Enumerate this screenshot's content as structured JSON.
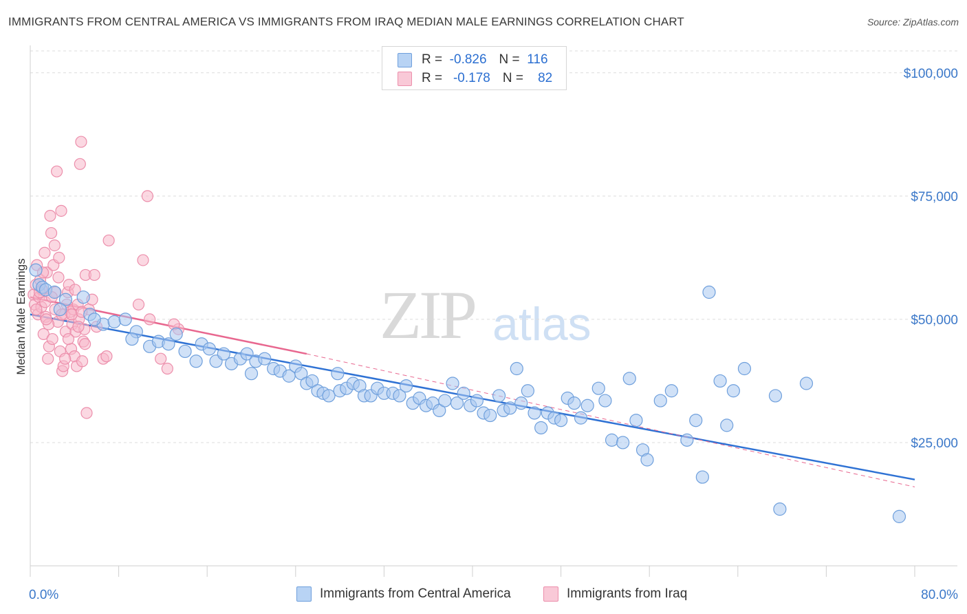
{
  "title": "IMMIGRANTS FROM CENTRAL AMERICA VS IMMIGRANTS FROM IRAQ MEDIAN MALE EARNINGS CORRELATION CHART",
  "source": "Source: ZipAtlas.com",
  "watermark": {
    "zip": "ZIP",
    "atlas": "atlas"
  },
  "legend": {
    "rows": [
      {
        "r_label": "R =",
        "r_value": "-0.826",
        "n_label": "N =",
        "n_value": "116",
        "color": "#a9c8f0"
      },
      {
        "r_label": "R =",
        "r_value": "-0.178",
        "n_label": "N =",
        "n_value": "82",
        "color": "#f7b8cb"
      }
    ]
  },
  "bottom_legend": [
    "Immigrants from Central America",
    "Immigrants from Iraq"
  ],
  "colors": {
    "blue_fill": "#a9c8f0",
    "blue_stroke": "#6e9fdc",
    "blue_line": "#2f72d4",
    "pink_fill": "#f7b8cb",
    "pink_stroke": "#ec8eab",
    "pink_line": "#e8678f",
    "axis_text": "#3b78c9",
    "grid": "#dcdcdc"
  },
  "chart_data": {
    "type": "scatter",
    "title": "IMMIGRANTS FROM CENTRAL AMERICA VS IMMIGRANTS FROM IRAQ MEDIAN MALE EARNINGS CORRELATION CHART",
    "xlabel": "",
    "ylabel": "Median Male Earnings",
    "xlim": [
      0,
      80
    ],
    "ylim": [
      0,
      105000
    ],
    "x_tick_labels": [
      "0.0%",
      "80.0%"
    ],
    "y_ticks": [
      {
        "value": 25000,
        "label": "$25,000"
      },
      {
        "value": 50000,
        "label": "$50,000"
      },
      {
        "value": 75000,
        "label": "$75,000"
      },
      {
        "value": 100000,
        "label": "$100,000"
      }
    ],
    "series": [
      {
        "name": "Immigrants from Central America",
        "R": -0.826,
        "N": 116,
        "trend": {
          "x": [
            0,
            80
          ],
          "y": [
            51000,
            17500
          ],
          "style": "solid"
        },
        "points": [
          [
            0.5,
            60000
          ],
          [
            0.8,
            57000
          ],
          [
            1.1,
            56500
          ],
          [
            1.4,
            56000
          ],
          [
            2.2,
            55500
          ],
          [
            3.2,
            54000
          ],
          [
            4.8,
            54500
          ],
          [
            2.7,
            52000
          ],
          [
            5.4,
            51000
          ],
          [
            6.6,
            49000
          ],
          [
            5.8,
            50000
          ],
          [
            7.6,
            49500
          ],
          [
            8.6,
            50000
          ],
          [
            9.6,
            47500
          ],
          [
            9.2,
            46000
          ],
          [
            10.8,
            44500
          ],
          [
            11.6,
            45500
          ],
          [
            12.5,
            45000
          ],
          [
            13.2,
            47000
          ],
          [
            14.0,
            43500
          ],
          [
            15.0,
            41500
          ],
          [
            15.5,
            45000
          ],
          [
            16.2,
            44000
          ],
          [
            16.8,
            41500
          ],
          [
            17.5,
            43000
          ],
          [
            18.2,
            41000
          ],
          [
            19.0,
            42000
          ],
          [
            19.6,
            43000
          ],
          [
            20.4,
            41500
          ],
          [
            20.0,
            39000
          ],
          [
            21.2,
            42000
          ],
          [
            22.0,
            40000
          ],
          [
            22.6,
            39500
          ],
          [
            23.4,
            38500
          ],
          [
            24.0,
            40500
          ],
          [
            24.5,
            39000
          ],
          [
            25.0,
            37000
          ],
          [
            25.5,
            37500
          ],
          [
            26.0,
            35500
          ],
          [
            26.5,
            35000
          ],
          [
            27.0,
            34500
          ],
          [
            27.8,
            39000
          ],
          [
            28.0,
            35500
          ],
          [
            28.6,
            36000
          ],
          [
            29.2,
            37000
          ],
          [
            29.8,
            36500
          ],
          [
            30.2,
            34500
          ],
          [
            30.8,
            34500
          ],
          [
            31.4,
            36000
          ],
          [
            32.0,
            35000
          ],
          [
            32.8,
            35000
          ],
          [
            33.4,
            34500
          ],
          [
            34.0,
            36500
          ],
          [
            34.6,
            33000
          ],
          [
            35.2,
            34000
          ],
          [
            35.8,
            32500
          ],
          [
            36.4,
            33000
          ],
          [
            37.0,
            31500
          ],
          [
            37.5,
            33500
          ],
          [
            38.2,
            37000
          ],
          [
            38.6,
            33000
          ],
          [
            39.2,
            35000
          ],
          [
            39.8,
            32500
          ],
          [
            40.4,
            33500
          ],
          [
            41.0,
            31000
          ],
          [
            41.6,
            30500
          ],
          [
            42.4,
            34500
          ],
          [
            42.8,
            31500
          ],
          [
            43.4,
            32000
          ],
          [
            44.0,
            40000
          ],
          [
            44.4,
            33000
          ],
          [
            45.0,
            35500
          ],
          [
            45.6,
            31000
          ],
          [
            46.2,
            28000
          ],
          [
            46.8,
            31000
          ],
          [
            47.4,
            30000
          ],
          [
            48.0,
            29500
          ],
          [
            48.6,
            34000
          ],
          [
            49.2,
            33000
          ],
          [
            49.8,
            30000
          ],
          [
            50.4,
            32500
          ],
          [
            51.4,
            36000
          ],
          [
            52.0,
            33500
          ],
          [
            52.6,
            25500
          ],
          [
            53.6,
            25000
          ],
          [
            54.2,
            38000
          ],
          [
            54.8,
            29500
          ],
          [
            55.4,
            23500
          ],
          [
            55.8,
            21500
          ],
          [
            57.0,
            33500
          ],
          [
            58.0,
            35500
          ],
          [
            59.4,
            25500
          ],
          [
            60.2,
            29500
          ],
          [
            60.8,
            18000
          ],
          [
            61.4,
            55500
          ],
          [
            62.4,
            37500
          ],
          [
            63.0,
            28500
          ],
          [
            63.6,
            35500
          ],
          [
            64.6,
            40000
          ],
          [
            67.4,
            34500
          ],
          [
            67.8,
            11500
          ],
          [
            70.2,
            37000
          ],
          [
            78.6,
            10000
          ]
        ]
      },
      {
        "name": "Immigrants from Iraq",
        "R": -0.178,
        "N": 82,
        "trend": {
          "x": [
            0,
            25
          ],
          "y": [
            54500,
            43000
          ],
          "style": "solid",
          "dashed_extension": {
            "x": [
              25,
              80
            ],
            "y": [
              43000,
              16000
            ]
          }
        },
        "points": [
          [
            0.3,
            55000
          ],
          [
            0.4,
            53000
          ],
          [
            0.5,
            57000
          ],
          [
            0.6,
            61000
          ],
          [
            0.7,
            51000
          ],
          [
            0.8,
            54500
          ],
          [
            0.9,
            58000
          ],
          [
            1.0,
            52500
          ],
          [
            1.1,
            56000
          ],
          [
            1.2,
            47000
          ],
          [
            1.3,
            63500
          ],
          [
            1.4,
            50500
          ],
          [
            1.5,
            59500
          ],
          [
            1.6,
            42000
          ],
          [
            1.7,
            44500
          ],
          [
            1.8,
            71000
          ],
          [
            1.9,
            67500
          ],
          [
            2.0,
            46000
          ],
          [
            2.1,
            61000
          ],
          [
            2.2,
            65000
          ],
          [
            2.3,
            55500
          ],
          [
            2.4,
            80000
          ],
          [
            2.5,
            49500
          ],
          [
            2.6,
            62500
          ],
          [
            2.7,
            43500
          ],
          [
            2.8,
            72000
          ],
          [
            2.9,
            39500
          ],
          [
            3.0,
            40500
          ],
          [
            3.1,
            51000
          ],
          [
            3.2,
            47500
          ],
          [
            3.3,
            53000
          ],
          [
            3.4,
            55500
          ],
          [
            3.5,
            57000
          ],
          [
            3.6,
            51500
          ],
          [
            3.7,
            44000
          ],
          [
            3.8,
            49000
          ],
          [
            3.9,
            52000
          ],
          [
            4.0,
            42500
          ],
          [
            4.1,
            47500
          ],
          [
            4.2,
            40500
          ],
          [
            4.3,
            53000
          ],
          [
            4.4,
            50000
          ],
          [
            4.5,
            81500
          ],
          [
            4.6,
            86000
          ],
          [
            4.7,
            41500
          ],
          [
            4.8,
            45500
          ],
          [
            4.9,
            48000
          ],
          [
            5.0,
            59000
          ],
          [
            5.1,
            31000
          ],
          [
            5.3,
            52000
          ],
          [
            5.6,
            54000
          ],
          [
            5.8,
            59000
          ],
          [
            6.0,
            48500
          ],
          [
            6.6,
            42000
          ],
          [
            6.9,
            42500
          ],
          [
            7.1,
            66000
          ],
          [
            9.8,
            53000
          ],
          [
            10.2,
            62000
          ],
          [
            10.6,
            75000
          ],
          [
            10.8,
            50000
          ],
          [
            11.8,
            42000
          ],
          [
            12.4,
            40000
          ],
          [
            13.4,
            48000
          ],
          [
            1.05,
            56000
          ],
          [
            1.35,
            53500
          ],
          [
            1.65,
            49000
          ],
          [
            1.95,
            54500
          ],
          [
            2.25,
            52000
          ],
          [
            2.55,
            58500
          ],
          [
            2.85,
            51000
          ],
          [
            3.15,
            42000
          ],
          [
            3.45,
            46000
          ],
          [
            3.75,
            51000
          ],
          [
            4.05,
            56000
          ],
          [
            4.35,
            48500
          ],
          [
            4.65,
            51500
          ],
          [
            4.95,
            45000
          ],
          [
            0.55,
            52000
          ],
          [
            0.85,
            55500
          ],
          [
            1.15,
            59500
          ],
          [
            1.45,
            50000
          ],
          [
            13.0,
            49000
          ]
        ]
      }
    ]
  }
}
